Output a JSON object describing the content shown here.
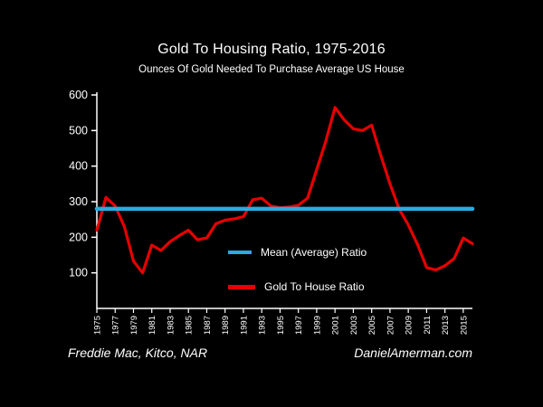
{
  "chart": {
    "title": "Gold To Housing Ratio, 1975-2016",
    "subtitle": "Ounces Of Gold Needed To Purchase Average US House"
  },
  "footer": {
    "source": "Freddie Mac, Kitco, NAR",
    "site": "DanielAmerman.com"
  },
  "colors": {
    "background": "#000000",
    "text": "#ffffff",
    "mean_line": "#29abe2",
    "gold_line": "#e60000"
  },
  "chart_data": {
    "type": "line",
    "title": "Gold To Housing Ratio, 1975-2016",
    "subtitle": "Ounces Of Gold Needed To Purchase Average US House",
    "x": [
      1975,
      1976,
      1977,
      1978,
      1979,
      1980,
      1981,
      1982,
      1983,
      1984,
      1985,
      1986,
      1987,
      1988,
      1989,
      1990,
      1991,
      1992,
      1993,
      1994,
      1995,
      1996,
      1997,
      1998,
      1999,
      2000,
      2001,
      2002,
      2003,
      2004,
      2005,
      2006,
      2007,
      2008,
      2009,
      2010,
      2011,
      2012,
      2013,
      2014,
      2015,
      2016
    ],
    "series": [
      {
        "name": "Mean (Average) Ratio",
        "type": "constant",
        "value": 280,
        "color": "#29abe2"
      },
      {
        "name": "Gold To House Ratio",
        "type": "line",
        "color": "#e60000",
        "values": [
          220,
          312,
          288,
          230,
          133,
          100,
          178,
          163,
          188,
          205,
          220,
          193,
          198,
          238,
          248,
          252,
          258,
          305,
          310,
          288,
          283,
          285,
          290,
          310,
          390,
          470,
          565,
          530,
          505,
          500,
          515,
          430,
          350,
          280,
          235,
          180,
          115,
          108,
          120,
          140,
          198,
          182
        ]
      }
    ],
    "ylim": [
      0,
      600
    ],
    "yticks": [
      100,
      200,
      300,
      400,
      500,
      600
    ],
    "xtick_labels": [
      "1975",
      "1977",
      "1979",
      "1981",
      "1983",
      "1985",
      "1987",
      "1989",
      "1991",
      "1993",
      "1995",
      "1997",
      "1999",
      "2001",
      "2003",
      "2005",
      "2007",
      "2009",
      "2011",
      "2013",
      "2015"
    ],
    "grid": false,
    "legend_position": "inside-lower-center",
    "background": "#000000"
  }
}
